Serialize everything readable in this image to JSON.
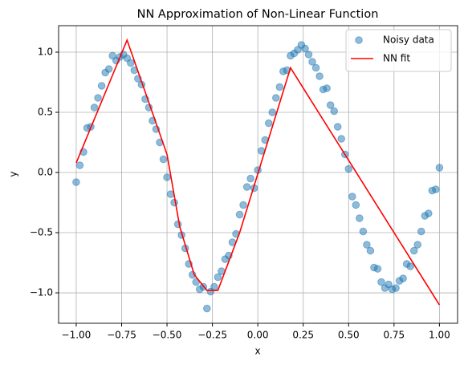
{
  "chart_data": {
    "type": "scatter",
    "title": "NN Approximation of Non-Linear Function",
    "xlabel": "x",
    "ylabel": "y",
    "xlim": [
      -1.097,
      1.1
    ],
    "ylim": [
      -1.253,
      1.22
    ],
    "xticks": [
      {
        "value": -1,
        "label": "−1.00"
      },
      {
        "value": -0.75,
        "label": "−0.75"
      },
      {
        "value": -0.5,
        "label": "−0.50"
      },
      {
        "value": -0.25,
        "label": "−0.25"
      },
      {
        "value": 0,
        "label": "0.00"
      },
      {
        "value": 0.25,
        "label": "0.25"
      },
      {
        "value": 0.5,
        "label": "0.50"
      },
      {
        "value": 0.75,
        "label": "0.75"
      },
      {
        "value": 1,
        "label": "1.00"
      }
    ],
    "yticks": [
      {
        "value": -1,
        "label": "−1.0"
      },
      {
        "value": -0.5,
        "label": "−0.5"
      },
      {
        "value": 0,
        "label": "0.0"
      },
      {
        "value": 0.5,
        "label": "0.5"
      },
      {
        "value": 1,
        "label": "1.0"
      }
    ],
    "grid": true,
    "legend": "upper right",
    "series": [
      {
        "name": "Noisy data",
        "type": "scatter",
        "color": "#1f77b4",
        "x": [
          -1,
          -0.98,
          -0.96,
          -0.94,
          -0.92,
          -0.9,
          -0.88,
          -0.86,
          -0.84,
          -0.82,
          -0.8,
          -0.78,
          -0.76,
          -0.74,
          -0.72,
          -0.7,
          -0.68,
          -0.66,
          -0.64,
          -0.62,
          -0.6,
          -0.58,
          -0.56,
          -0.54,
          -0.52,
          -0.5,
          -0.48,
          -0.46,
          -0.44,
          -0.42,
          -0.4,
          -0.38,
          -0.36,
          -0.34,
          -0.32,
          -0.3,
          -0.28,
          -0.26,
          -0.24,
          -0.22,
          -0.2,
          -0.18,
          -0.16,
          -0.14,
          -0.12,
          -0.1,
          -0.08,
          -0.06,
          -0.04,
          -0.02,
          0,
          0.02,
          0.04,
          0.06,
          0.08,
          0.1,
          0.12,
          0.14,
          0.16,
          0.18,
          0.2,
          0.22,
          0.24,
          0.26,
          0.28,
          0.3,
          0.32,
          0.34,
          0.36,
          0.38,
          0.4,
          0.42,
          0.44,
          0.46,
          0.48,
          0.5,
          0.52,
          0.54,
          0.56,
          0.58,
          0.6,
          0.62,
          0.64,
          0.66,
          0.68,
          0.7,
          0.72,
          0.74,
          0.76,
          0.78,
          0.8,
          0.82,
          0.84,
          0.86,
          0.88,
          0.9,
          0.92,
          0.94,
          0.96,
          0.98,
          1
        ],
        "values": [
          -0.08,
          0.06,
          0.17,
          0.37,
          0.38,
          0.54,
          0.62,
          0.72,
          0.83,
          0.86,
          0.97,
          0.93,
          0.96,
          0.98,
          0.95,
          0.91,
          0.85,
          0.78,
          0.73,
          0.61,
          0.54,
          0.43,
          0.36,
          0.25,
          0.11,
          -0.04,
          -0.18,
          -0.25,
          -0.43,
          -0.52,
          -0.63,
          -0.76,
          -0.85,
          -0.91,
          -0.97,
          -0.95,
          -1.13,
          -0.99,
          -0.95,
          -0.87,
          -0.82,
          -0.72,
          -0.69,
          -0.58,
          -0.51,
          -0.35,
          -0.27,
          -0.12,
          -0.05,
          -0.13,
          0.02,
          0.18,
          0.27,
          0.41,
          0.5,
          0.62,
          0.71,
          0.84,
          0.85,
          0.97,
          0.99,
          1.02,
          1.06,
          1.03,
          0.98,
          0.92,
          0.87,
          0.8,
          0.69,
          0.7,
          0.56,
          0.51,
          0.38,
          0.28,
          0.15,
          0.03,
          -0.2,
          -0.27,
          -0.38,
          -0.49,
          -0.6,
          -0.65,
          -0.79,
          -0.8,
          -0.91,
          -0.96,
          -0.93,
          -0.97,
          -0.96,
          -0.9,
          -0.88,
          -0.76,
          -0.78,
          -0.65,
          -0.6,
          -0.49,
          -0.36,
          -0.34,
          -0.15,
          -0.14,
          0.04
        ]
      },
      {
        "name": "NN fit",
        "type": "line",
        "color": "#ff0000",
        "x": [
          -1,
          -0.72,
          -0.5,
          -0.43,
          -0.35,
          -0.28,
          -0.22,
          -0.1,
          0.18,
          1
        ],
        "values": [
          0.08,
          1.1,
          0.15,
          -0.45,
          -0.85,
          -0.98,
          -0.98,
          -0.5,
          0.87,
          -1.1
        ]
      }
    ]
  }
}
